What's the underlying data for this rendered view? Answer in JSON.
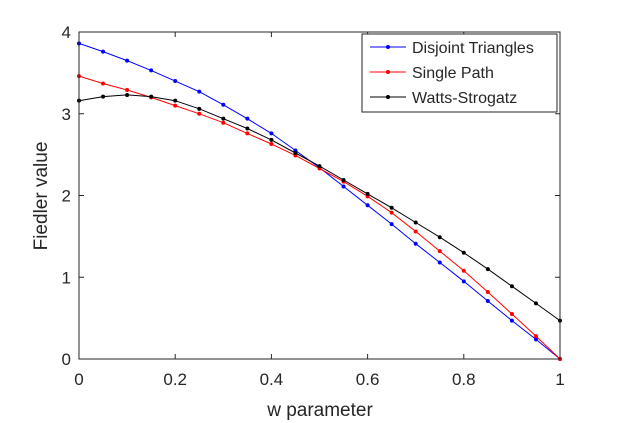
{
  "chart_data": {
    "type": "line",
    "title": "",
    "xlabel": "w parameter",
    "ylabel": "Fiedler value",
    "xlim": [
      0,
      1
    ],
    "ylim": [
      0,
      4
    ],
    "xticks": [
      0,
      0.2,
      0.4,
      0.6,
      0.8,
      1
    ],
    "xtick_labels": [
      "0",
      "0.2",
      "0.4",
      "0.6",
      "0.8",
      "1"
    ],
    "yticks": [
      0,
      1,
      2,
      3,
      4
    ],
    "ytick_labels": [
      "0",
      "1",
      "2",
      "3",
      "4"
    ],
    "grid": false,
    "legend_position": "top-right",
    "x": [
      0,
      0.05,
      0.1,
      0.15,
      0.2,
      0.25,
      0.3,
      0.35,
      0.4,
      0.45,
      0.5,
      0.55,
      0.6,
      0.65,
      0.7,
      0.75,
      0.8,
      0.85,
      0.9,
      0.95,
      1
    ],
    "series": [
      {
        "name": "Disjoint Triangles",
        "color": "#0000ff",
        "values": [
          3.86,
          3.76,
          3.65,
          3.53,
          3.4,
          3.27,
          3.11,
          2.94,
          2.76,
          2.55,
          2.34,
          2.11,
          1.88,
          1.65,
          1.41,
          1.18,
          0.95,
          0.71,
          0.47,
          0.24,
          0.0
        ]
      },
      {
        "name": "Single Path",
        "color": "#ff0000",
        "values": [
          3.46,
          3.37,
          3.29,
          3.2,
          3.1,
          3.0,
          2.89,
          2.76,
          2.63,
          2.49,
          2.33,
          2.17,
          1.99,
          1.79,
          1.56,
          1.32,
          1.08,
          0.82,
          0.55,
          0.28,
          0.0
        ]
      },
      {
        "name": "Watts-Strogatz",
        "color": "#000000",
        "values": [
          3.16,
          3.21,
          3.23,
          3.21,
          3.16,
          3.06,
          2.94,
          2.82,
          2.68,
          2.52,
          2.36,
          2.19,
          2.02,
          1.85,
          1.67,
          1.49,
          1.3,
          1.1,
          0.89,
          0.68,
          0.47
        ]
      }
    ]
  }
}
